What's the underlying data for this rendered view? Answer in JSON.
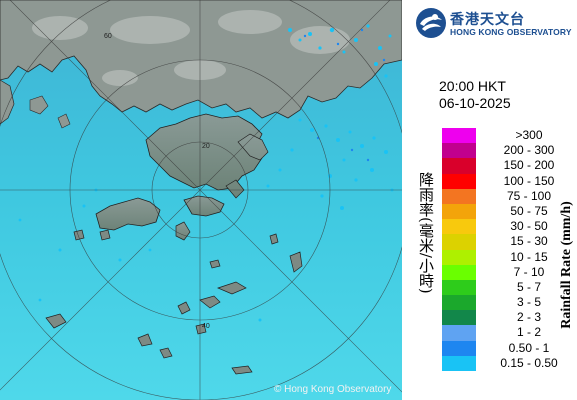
{
  "organisation": {
    "name_zh": "香港天文台",
    "name_en": "HONG KONG OBSERVATORY"
  },
  "timestamp": {
    "time": "20:00 HKT",
    "date": "06-10-2025"
  },
  "legend": {
    "title_zh": "降雨率(毫米/小時)",
    "title_en": "Rainfall Rate (mm/h)",
    "items": [
      {
        "range": ">300",
        "color": "#ee00ee"
      },
      {
        "range": "200 - 300",
        "color": "#c1008e"
      },
      {
        "range": "150 - 200",
        "color": "#d9002b"
      },
      {
        "range": "100 - 150",
        "color": "#ff0000"
      },
      {
        "range": "75 - 100",
        "color": "#f37521"
      },
      {
        "range": "50 - 75",
        "color": "#f3a40a"
      },
      {
        "range": "30 - 50",
        "color": "#f8c90d"
      },
      {
        "range": "15 - 30",
        "color": "#dcd200"
      },
      {
        "range": "10 - 15",
        "color": "#aef000"
      },
      {
        "range": "7 - 10",
        "color": "#6aff00"
      },
      {
        "range": "5 - 7",
        "color": "#2ecc1b"
      },
      {
        "range": "3 - 5",
        "color": "#1ba82c"
      },
      {
        "range": "2 - 3",
        "color": "#12874a"
      },
      {
        "range": "1 - 2",
        "color": "#5fa3f2"
      },
      {
        "range": "0.50 - 1",
        "color": "#1e86f0"
      },
      {
        "range": "0.15 - 0.50",
        "color": "#19c3f5"
      }
    ]
  },
  "map": {
    "range_rings": [
      "20",
      "40",
      "60"
    ],
    "copyright": "© Hong Kong Observatory"
  }
}
